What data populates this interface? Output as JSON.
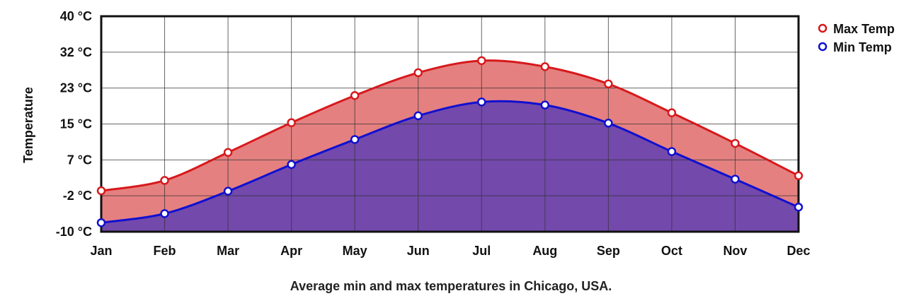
{
  "chart_data": {
    "type": "area",
    "categories": [
      "Jan",
      "Feb",
      "Mar",
      "Apr",
      "May",
      "Jun",
      "Jul",
      "Aug",
      "Sep",
      "Oct",
      "Nov",
      "Dec"
    ],
    "ylabel": "Temperature",
    "caption": "Average min and max temperatures in Chicago, USA.",
    "ylim": [
      -10,
      40
    ],
    "y_tick_labels": [
      "40 °C",
      "32 °C",
      "23 °C",
      "15 °C",
      "7 °C",
      "-2 °C",
      "-10 °C"
    ],
    "grid": true,
    "legend_position": "top-right",
    "series": [
      {
        "name": "Max Temp",
        "color": "#d7191c",
        "fill": "#e58080",
        "values": [
          -0.5,
          1.9,
          8.4,
          15.3,
          21.6,
          26.9,
          29.7,
          28.3,
          24.3,
          17.6,
          10.5,
          3.0
        ]
      },
      {
        "name": "Min Temp",
        "color": "#1010d0",
        "fill": "#7349ac",
        "values": [
          -7.9,
          -5.8,
          -0.6,
          5.6,
          11.4,
          16.9,
          20.1,
          19.4,
          15.2,
          8.6,
          2.2,
          -4.3
        ]
      }
    ]
  }
}
